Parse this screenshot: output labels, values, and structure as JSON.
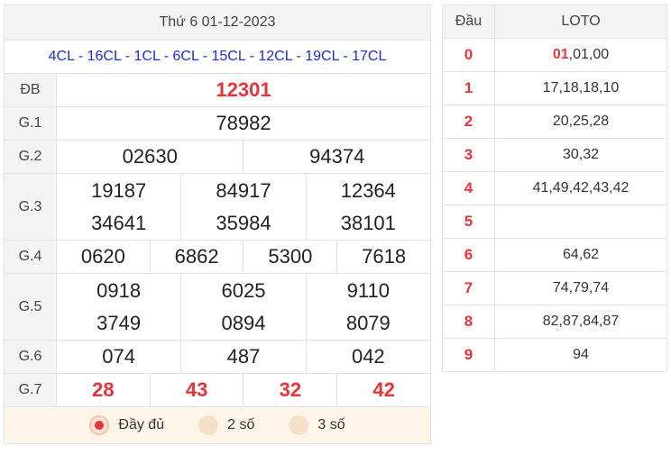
{
  "header": {
    "date": "Thứ 6 01-12-2023"
  },
  "codes": "4CL - 16CL - 1CL - 6CL - 15CL - 12CL - 19CL - 17CL",
  "prizes": {
    "db": {
      "label": "ĐB",
      "values": [
        "12301"
      ]
    },
    "g1": {
      "label": "G.1",
      "values": [
        "78982"
      ]
    },
    "g2": {
      "label": "G.2",
      "values": [
        "02630",
        "94374"
      ]
    },
    "g3": {
      "label": "G.3",
      "values": [
        "19187",
        "84917",
        "12364",
        "34641",
        "35984",
        "38101"
      ]
    },
    "g4": {
      "label": "G.4",
      "values": [
        "0620",
        "6862",
        "5300",
        "7618"
      ]
    },
    "g5": {
      "label": "G.5",
      "values": [
        "0918",
        "6025",
        "9110",
        "3749",
        "0894",
        "8079"
      ]
    },
    "g6": {
      "label": "G.6",
      "values": [
        "074",
        "487",
        "042"
      ]
    },
    "g7": {
      "label": "G.7",
      "values": [
        "28",
        "43",
        "32",
        "42"
      ]
    }
  },
  "options": [
    {
      "label": "Đầy đủ",
      "selected": true
    },
    {
      "label": "2 số",
      "selected": false
    },
    {
      "label": "3 số",
      "selected": false
    }
  ],
  "loto": {
    "headers": [
      "Đầu",
      "LOTO"
    ],
    "rows": [
      {
        "dau": "0",
        "highlight": "01",
        "rest": ",01,00"
      },
      {
        "dau": "1",
        "highlight": "",
        "rest": "17,18,18,10"
      },
      {
        "dau": "2",
        "highlight": "",
        "rest": "20,25,28"
      },
      {
        "dau": "3",
        "highlight": "",
        "rest": "30,32"
      },
      {
        "dau": "4",
        "highlight": "",
        "rest": "41,49,42,43,42"
      },
      {
        "dau": "5",
        "highlight": "",
        "rest": ""
      },
      {
        "dau": "6",
        "highlight": "",
        "rest": "64,62"
      },
      {
        "dau": "7",
        "highlight": "",
        "rest": "74,79,74"
      },
      {
        "dau": "8",
        "highlight": "",
        "rest": "82,87,84,87"
      },
      {
        "dau": "9",
        "highlight": "",
        "rest": "94"
      }
    ]
  },
  "colors": {
    "accent": "#e8333b",
    "codes": "#1a2fd6",
    "header_bg": "#f3f3f3",
    "options_bg": "#fdf6e8"
  }
}
